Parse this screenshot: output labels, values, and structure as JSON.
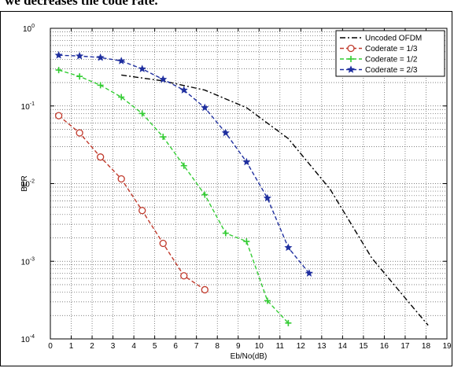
{
  "caption_fragment": "we decreases the code rate.",
  "chart_data": {
    "type": "line",
    "xlabel": "Eb/No(dB)",
    "ylabel": "BER",
    "xlim": [
      0,
      19
    ],
    "ylim": [
      0.0001,
      1
    ],
    "yscale": "log",
    "grid": true,
    "legend_position": "top-right",
    "x_ticks": [
      "0",
      "1",
      "2",
      "3",
      "4",
      "5",
      "6",
      "7",
      "8",
      "9",
      "10",
      "11",
      "12",
      "13",
      "14",
      "15",
      "16",
      "17",
      "18",
      "19"
    ],
    "y_ticks": [
      {
        "value": 1,
        "base": "10",
        "exp": "0"
      },
      {
        "value": 0.1,
        "base": "10",
        "exp": "-1"
      },
      {
        "value": 0.01,
        "base": "10",
        "exp": "-2"
      },
      {
        "value": 0.001,
        "base": "10",
        "exp": "-3"
      },
      {
        "value": 0.0001,
        "base": "10",
        "exp": "-4"
      }
    ],
    "series": [
      {
        "name": "Uncoded OFDM",
        "color": "#000000",
        "dash": "dashdot",
        "marker": "none",
        "x": [
          3.4,
          5.4,
          7.4,
          9.4,
          11.4,
          13.4,
          15.4,
          17.4,
          18.1
        ],
        "y": [
          0.25,
          0.21,
          0.16,
          0.095,
          0.038,
          0.0085,
          0.0011,
          0.00025,
          0.00015
        ]
      },
      {
        "name": "Coderate = 1/3",
        "color": "#c0392b",
        "dash": "dash",
        "marker": "circle",
        "x": [
          0.4,
          1.4,
          2.4,
          3.4,
          4.4,
          5.4,
          6.4,
          7.4
        ],
        "y": [
          0.075,
          0.045,
          0.022,
          0.0115,
          0.0045,
          0.0017,
          0.00065,
          0.00043
        ]
      },
      {
        "name": "Coderate = 1/2",
        "color": "#33cc33",
        "dash": "dash",
        "marker": "plus",
        "x": [
          0.4,
          1.4,
          2.4,
          3.4,
          4.4,
          5.4,
          6.4,
          7.4,
          8.4,
          9.4,
          10.4,
          11.4
        ],
        "y": [
          0.29,
          0.24,
          0.185,
          0.13,
          0.08,
          0.04,
          0.017,
          0.0072,
          0.0023,
          0.0018,
          0.00031,
          0.00016
        ]
      },
      {
        "name": "Coderate = 2/3",
        "color": "#1f2f9f",
        "dash": "dash",
        "marker": "star",
        "x": [
          0.4,
          1.4,
          2.4,
          3.4,
          4.4,
          5.4,
          6.4,
          7.4,
          8.4,
          9.4,
          10.4,
          11.4,
          12.4
        ],
        "y": [
          0.45,
          0.44,
          0.42,
          0.38,
          0.3,
          0.22,
          0.16,
          0.095,
          0.045,
          0.019,
          0.0065,
          0.0015,
          0.0007
        ]
      }
    ]
  }
}
